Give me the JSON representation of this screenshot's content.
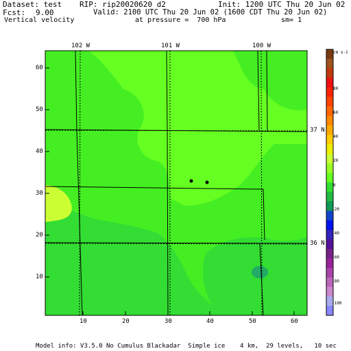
{
  "header": {
    "dataset": "Dataset: test",
    "rip": "RIP: rip20020620 d2",
    "init": "Init: 1200 UTC Thu 20 Jun 02",
    "fcst_label": "Fcst:",
    "fcst_value": "9.00",
    "valid": "Valid: 2100 UTC Thu 20 Jun 02 (1600 CDT Thu 20 Jun 02)",
    "field": "Vertical velocity",
    "pressure": "at pressure =  700 hPa",
    "smoothing": "sm= 1"
  },
  "map": {
    "longitude_labels": [
      "102 W",
      "101 W",
      "100 W"
    ],
    "latitude_labels": [
      "37 N",
      "36 N"
    ],
    "x_ticks": [
      "10",
      "20",
      "30",
      "40",
      "50",
      "60"
    ],
    "y_ticks": [
      "10",
      "20",
      "30",
      "40",
      "50",
      "60"
    ],
    "x_range": [
      1,
      64
    ],
    "y_range": [
      1,
      64
    ],
    "colors": {
      "background_field": "#66ff22",
      "light_band": "#44ee22",
      "mid_band": "#33dd33",
      "weak_positive": "#ccff33",
      "downdraft_core": "#22aa66"
    }
  },
  "colorbar": {
    "units": "cm s-1",
    "labels": [
      "80",
      "60",
      "40",
      "20",
      "0",
      "-20",
      "-40",
      "-60",
      "-80",
      "-100"
    ],
    "colors": [
      "#7a3a10",
      "#a0521e",
      "#c0390e",
      "#ee1111",
      "#ff2200",
      "#ff4400",
      "#ff6600",
      "#ff8800",
      "#ffaa00",
      "#ffcc00",
      "#eeee00",
      "#ccff33",
      "#99ff22",
      "#66ff22",
      "#33dd33",
      "#22bb44",
      "#119955",
      "#1144cc",
      "#0011ee",
      "#3322bb",
      "#551199",
      "#772288",
      "#992299",
      "#aa44aa",
      "#bb66bb",
      "#cc88cc",
      "#aaaaee",
      "#8888ff"
    ]
  },
  "footer": "Model info: V3.5.0 No Cumulus Blackadar  Simple ice    4 km,  29 levels,   10 sec"
}
